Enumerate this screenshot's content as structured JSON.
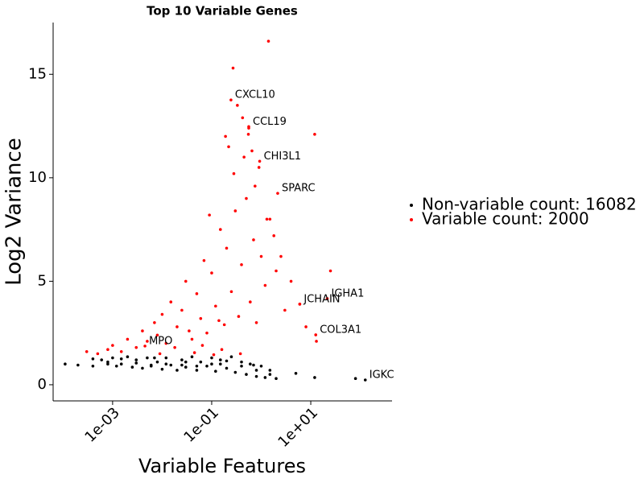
{
  "chart_data": {
    "type": "scatter",
    "title": "Top 10 Variable Genes",
    "x_label": "Variable Features",
    "y_label": "Log2 Variance",
    "xscale": "log",
    "xlim": [
      6.3e-05,
      437
    ],
    "ylim": [
      -0.78,
      17.5
    ],
    "xticks": [
      {
        "value": 0.001,
        "label": "1e-03"
      },
      {
        "value": 0.1,
        "label": "1e-01"
      },
      {
        "value": 10,
        "label": "1e+01"
      }
    ],
    "yticks": [
      0,
      5,
      10,
      15
    ],
    "legend": "right",
    "series": [
      {
        "name": "Non-variable count: 16082",
        "color": "#000000",
        "x": [
          0.00011,
          0.0002,
          0.0004,
          0.0004,
          0.0006,
          0.0008,
          0.001,
          0.0012,
          0.0015,
          0.002,
          0.0025,
          0.003,
          0.004,
          0.005,
          0.006,
          0.008,
          0.01,
          0.012,
          0.015,
          0.02,
          0.025,
          0.03,
          0.04,
          0.05,
          0.06,
          0.08,
          0.1,
          0.12,
          0.15,
          0.2,
          0.25,
          0.3,
          0.4,
          0.5,
          0.6,
          0.8,
          1,
          1.2,
          1.5,
          2,
          0.003,
          0.006,
          0.012,
          0.025,
          0.05,
          0.1,
          0.2,
          0.4,
          0.8,
          1.5,
          0.0015,
          0.0008,
          0.007,
          0.03,
          0.15,
          0.7,
          5,
          12,
          80,
          126
        ],
        "values": [
          1.0,
          0.95,
          1.25,
          0.9,
          1.2,
          1.1,
          1.3,
          0.9,
          1.0,
          1.35,
          0.85,
          1.2,
          0.8,
          1.3,
          0.9,
          1.1,
          0.75,
          1.3,
          0.95,
          0.7,
          1.2,
          0.85,
          1.35,
          0.7,
          1.1,
          0.9,
          1.3,
          0.65,
          1.0,
          0.8,
          1.35,
          0.6,
          1.1,
          0.5,
          1.0,
          0.4,
          0.9,
          0.35,
          0.7,
          0.3,
          1.05,
          0.95,
          1.0,
          0.95,
          0.9,
          1.0,
          1.15,
          0.9,
          0.7,
          0.5,
          1.25,
          1.0,
          1.3,
          1.1,
          1.2,
          0.95,
          0.55,
          0.35,
          0.3,
          0.23
        ]
      },
      {
        "name": "Variable count: 2000",
        "color": "#ff0000",
        "x": [
          0.0003,
          0.0005,
          0.0008,
          0.001,
          0.0015,
          0.002,
          0.003,
          0.004,
          0.005,
          0.007,
          0.008,
          0.01,
          0.012,
          0.015,
          0.02,
          0.025,
          0.03,
          0.04,
          0.05,
          0.06,
          0.07,
          0.08,
          0.1,
          0.12,
          0.15,
          0.18,
          0.2,
          0.25,
          0.3,
          0.35,
          0.4,
          0.5,
          0.6,
          0.7,
          0.8,
          1,
          1.2,
          1.5,
          2,
          3,
          0.009,
          0.018,
          0.035,
          0.065,
          0.09,
          0.14,
          0.22,
          0.28,
          0.45,
          0.55,
          0.19,
          0.27,
          0.33,
          0.42,
          0.56,
          0.65,
          0.75,
          0.9,
          1.3,
          1.8,
          1.4,
          2.5,
          4,
          6,
          8,
          12,
          25,
          13,
          0.245,
          0.56,
          0.93,
          2.15,
          21.5,
          6.0,
          12.6,
          0.0045,
          0.045,
          0.11,
          0.16,
          0.38
        ],
        "values": [
          1.6,
          1.5,
          1.7,
          1.9,
          1.6,
          2.2,
          1.8,
          2.6,
          2.1,
          3.0,
          2.4,
          3.4,
          2.0,
          4.0,
          2.8,
          3.6,
          5.0,
          2.2,
          4.4,
          3.2,
          6.0,
          2.5,
          5.4,
          3.8,
          7.5,
          2.9,
          6.6,
          4.5,
          8.4,
          3.3,
          5.8,
          9.0,
          4.0,
          7.0,
          3.0,
          6.2,
          4.8,
          8.0,
          5.5,
          3.6,
          1.5,
          1.8,
          2.6,
          1.9,
          8.2,
          3.1,
          11.5,
          10.2,
          11.0,
          12.1,
          12.0,
          15.3,
          13.5,
          12.9,
          12.4,
          11.3,
          9.6,
          10.5,
          8.0,
          7.2,
          16.6,
          6.2,
          5.0,
          3.9,
          2.8,
          12.1,
          5.5,
          2.1,
          13.76,
          12.47,
          10.8,
          9.25,
          4.16,
          3.89,
          2.41,
          1.87,
          1.55,
          1.45,
          1.7,
          1.5
        ]
      }
    ],
    "labels": [
      {
        "text": "CXCL10",
        "x": 0.245,
        "y": 13.76
      },
      {
        "text": "CCL19",
        "x": 0.56,
        "y": 12.47
      },
      {
        "text": "CHI3L1",
        "x": 0.93,
        "y": 10.8
      },
      {
        "text": "SPARC",
        "x": 2.15,
        "y": 9.25
      },
      {
        "text": "IGHA1",
        "x": 21.5,
        "y": 4.16
      },
      {
        "text": "JCHAIN",
        "x": 6.0,
        "y": 3.89
      },
      {
        "text": "COL3A1",
        "x": 12.6,
        "y": 2.41
      },
      {
        "text": "MPO",
        "x": 0.0045,
        "y": 1.87
      },
      {
        "text": "IGKC",
        "x": 126,
        "y": 0.23
      }
    ]
  }
}
